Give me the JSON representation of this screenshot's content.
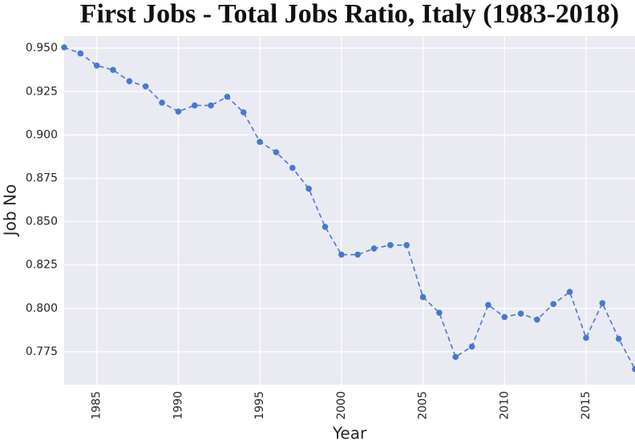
{
  "chart_data": {
    "type": "line",
    "title": "First Jobs - Total Jobs Ratio, Italy (1983-2018)",
    "x_label": "Year",
    "y_label": "Job No",
    "x": [
      1983,
      1984,
      1985,
      1986,
      1987,
      1988,
      1989,
      1990,
      1991,
      1992,
      1993,
      1994,
      1995,
      1996,
      1997,
      1998,
      1999,
      2000,
      2001,
      2002,
      2003,
      2004,
      2005,
      2006,
      2007,
      2008,
      2009,
      2010,
      2011,
      2012,
      2013,
      2014,
      2015,
      2016,
      2017,
      2018
    ],
    "series": [
      {
        "color": "#4878cf",
        "values": [
          0.9505,
          0.947,
          0.94,
          0.9375,
          0.931,
          0.928,
          0.9186,
          0.9135,
          0.917,
          0.917,
          0.922,
          0.913,
          0.896,
          0.89,
          0.881,
          0.869,
          0.847,
          0.831,
          0.831,
          0.8345,
          0.8365,
          0.8365,
          0.8065,
          0.7975,
          0.772,
          0.778,
          0.802,
          0.795,
          0.797,
          0.7935,
          0.8025,
          0.8095,
          0.783,
          0.803,
          0.7825,
          0.765
        ]
      }
    ],
    "xlim": [
      1983,
      2018
    ],
    "xticks": [
      1985,
      1990,
      1995,
      2000,
      2005,
      2010,
      2015
    ],
    "ylim": [
      0.756,
      0.957
    ],
    "yticks": [
      0.775,
      {
        "value": 0.8,
        "label": "0.800"
      },
      0.825,
      {
        "value": 0.85,
        "label": "0.850"
      },
      0.875,
      {
        "value": 0.9,
        "label": "0.900"
      },
      0.925,
      {
        "value": 0.95,
        "label": "0.950"
      }
    ],
    "grid": true,
    "line_style": "dashed",
    "marker": "circle"
  }
}
